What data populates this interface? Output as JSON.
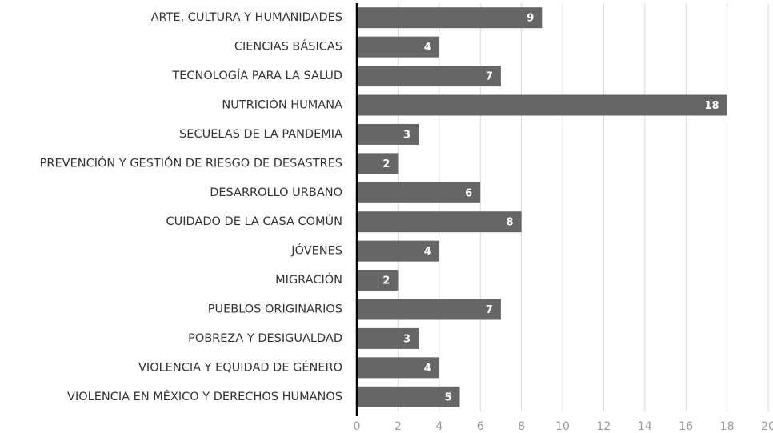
{
  "chart_data": {
    "type": "bar",
    "orientation": "horizontal",
    "categories": [
      "ARTE, CULTURA Y HUMANIDADES",
      "CIENCIAS BÁSICAS",
      "TECNOLOGÍA PARA LA SALUD",
      "NUTRICIÓN HUMANA",
      "SECUELAS DE LA PANDEMIA",
      "PREVENCIÓN Y GESTIÓN DE RIESGO DE DESASTRES",
      "DESARROLLO URBANO",
      "CUIDADO DE LA CASA COMÚN",
      "JÓVENES",
      "MIGRACIÓN",
      "PUEBLOS ORIGINARIOS",
      "POBREZA Y DESIGUALDAD",
      "VIOLENCIA Y EQUIDAD DE GÉNERO",
      "VIOLENCIA EN MÉXICO Y DERECHOS HUMANOS"
    ],
    "values": [
      9,
      4,
      7,
      18,
      3,
      2,
      6,
      8,
      4,
      2,
      7,
      3,
      4,
      5
    ],
    "color": "#666666",
    "xlim": [
      0,
      20
    ],
    "xticks": [
      0,
      2,
      4,
      6,
      8,
      10,
      12,
      14,
      16,
      18,
      20
    ],
    "grid": true
  }
}
